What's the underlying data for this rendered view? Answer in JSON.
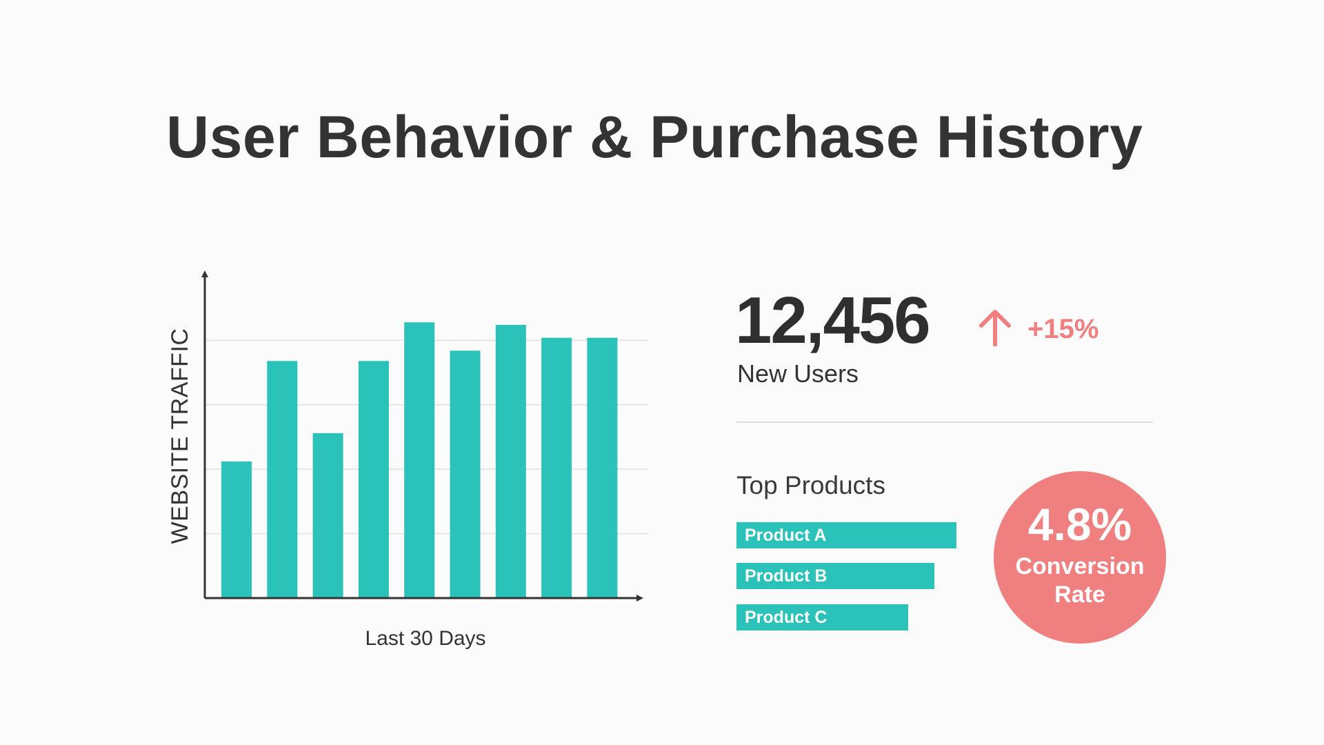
{
  "title": "User Behavior & Purchase History",
  "colors": {
    "bar": "#2bc2b9",
    "accent": "#f08080",
    "grid": "#e5e5e5",
    "axis": "#333333"
  },
  "chart_data": {
    "type": "bar",
    "categories": [
      "",
      "",
      "",
      "",
      "",
      "",
      "",
      "",
      ""
    ],
    "values": [
      53,
      92,
      64,
      92,
      107,
      96,
      106,
      101,
      101
    ],
    "ylabel": "WEBSITE TRAFFIC",
    "xlabel": "Last 30 Days",
    "ylim": [
      0,
      125
    ],
    "grid": true,
    "gridlines": [
      25,
      50,
      75,
      100
    ]
  },
  "kpi": {
    "value": "12,456",
    "change": "+15%",
    "change_icon": "arrow-up-icon",
    "label": "New Users"
  },
  "top_products": {
    "heading": "Top Products",
    "items": [
      {
        "label": "Product A",
        "share": 1.0
      },
      {
        "label": "Product B",
        "share": 0.9
      },
      {
        "label": "Product C",
        "share": 0.78
      }
    ]
  },
  "conversion": {
    "value": "4.8%",
    "label": "Conversion Rate"
  }
}
